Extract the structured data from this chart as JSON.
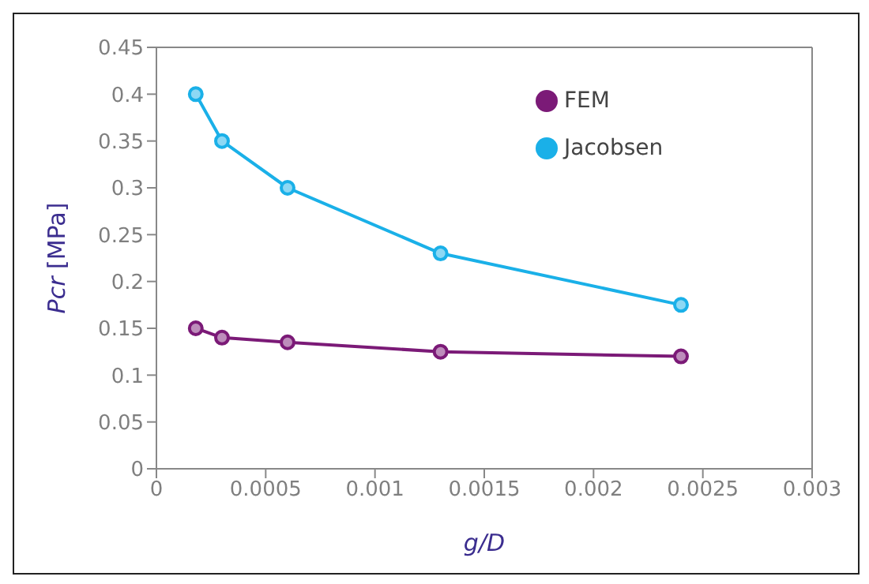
{
  "chart_data": {
    "type": "line",
    "xlabel": "g/D",
    "ylabel": "Pcr [MPa]",
    "x": [
      0.00018,
      0.0003,
      0.0006,
      0.0013,
      0.0024
    ],
    "series": [
      {
        "name": "FEM",
        "color": "#7b1a77",
        "values": [
          0.15,
          0.14,
          0.135,
          0.125,
          0.12
        ]
      },
      {
        "name": "Jacobsen",
        "color": "#1ab0e8",
        "values": [
          0.4,
          0.35,
          0.3,
          0.23,
          0.175
        ]
      }
    ],
    "xlim": [
      0,
      0.003
    ],
    "xticks": [
      0,
      0.0005,
      0.001,
      0.0015,
      0.002,
      0.0025,
      0.003
    ],
    "ylim": [
      0,
      0.45
    ],
    "yticks": [
      0,
      0.05,
      0.1,
      0.15,
      0.2,
      0.25,
      0.3,
      0.35,
      0.4,
      0.45
    ],
    "grid": false,
    "legend": "top right",
    "marker": "circle",
    "line_style": "solid"
  }
}
